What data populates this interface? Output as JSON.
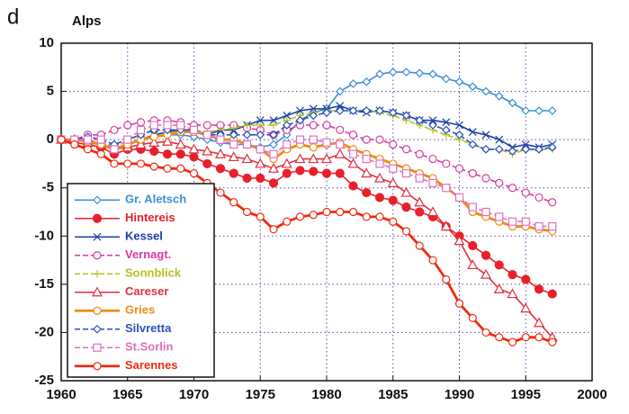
{
  "chart_data": {
    "type": "line",
    "panel": "d",
    "title": "Alps",
    "x": [
      1960,
      1961,
      1962,
      1963,
      1964,
      1965,
      1966,
      1967,
      1968,
      1969,
      1970,
      1971,
      1972,
      1973,
      1974,
      1975,
      1976,
      1977,
      1978,
      1979,
      1980,
      1981,
      1982,
      1983,
      1984,
      1985,
      1986,
      1987,
      1988,
      1989,
      1990,
      1991,
      1992,
      1993,
      1994,
      1995,
      1996,
      1997
    ],
    "xlim": [
      1960,
      2000
    ],
    "xticks": [
      1960,
      1965,
      1970,
      1975,
      1980,
      1985,
      1990,
      1995,
      2000
    ],
    "ylim": [
      -25,
      10
    ],
    "yticks": [
      -25,
      -20,
      -15,
      -10,
      -5,
      0,
      5,
      10
    ],
    "grid": true,
    "legend": "lower left",
    "series": [
      {
        "name": "Gr. Aletsch",
        "color": "#3a8fd8",
        "marker": "diamond-open",
        "dashed": false,
        "values": [
          0,
          0,
          -0.3,
          -0.5,
          -1,
          -0.5,
          0,
          0.3,
          0.5,
          0.5,
          0.3,
          0,
          -0.3,
          -0.5,
          -0.5,
          -0.8,
          -0.5,
          0.5,
          2,
          2.8,
          3.2,
          5,
          5.8,
          6,
          6.8,
          7,
          7,
          6.9,
          6.8,
          6.3,
          6,
          5.5,
          5,
          4.5,
          3.8,
          3,
          3,
          3
        ]
      },
      {
        "name": "Hintereis",
        "color": "#e8202a",
        "marker": "circle-filled",
        "dashed": false,
        "values": [
          0,
          -0.3,
          -0.5,
          -0.8,
          -1.5,
          -1,
          -1,
          -1.2,
          -1.5,
          -1.5,
          -1.8,
          -2.5,
          -3,
          -3.5,
          -4,
          -4,
          -4.5,
          -3.5,
          -3.2,
          -3.3,
          -3.5,
          -3.5,
          -4.8,
          -5.5,
          -6,
          -6.3,
          -7,
          -7.5,
          -8,
          -9,
          -10,
          -11,
          -12,
          -13,
          -14,
          -14.5,
          -15.5,
          -16
        ]
      },
      {
        "name": "Kessel",
        "color": "#1b3fa8",
        "marker": "cross",
        "dashed": false,
        "values": [
          0,
          0,
          0,
          -0.5,
          -1,
          -0.5,
          0,
          0.5,
          0.8,
          1,
          1,
          0.5,
          1,
          1,
          1.5,
          2,
          2,
          2.5,
          3,
          3.2,
          3.2,
          3.5,
          3,
          2.8,
          3,
          2.8,
          2.5,
          2,
          2,
          1.8,
          1.5,
          0.8,
          0.5,
          0,
          -0.8,
          -0.5,
          -0.8,
          -0.5
        ]
      },
      {
        "name": "Vernagt.",
        "color": "#d83a9e",
        "marker": "circle-open",
        "dashed": true,
        "values": [
          0,
          0,
          0.5,
          0.5,
          1,
          1.5,
          1.8,
          2,
          2,
          1.8,
          1.5,
          1.5,
          1.5,
          1.5,
          1.2,
          1,
          0.5,
          1,
          1.5,
          1.5,
          1.5,
          1,
          0.5,
          0,
          0,
          -0.5,
          -1,
          -1.5,
          -2,
          -2.5,
          -3,
          -3.5,
          -4,
          -4.5,
          -5,
          -5.5,
          -6,
          -6.5
        ]
      },
      {
        "name": "Sonnblick",
        "color": "#b8c020",
        "marker": "plus",
        "dashed": true,
        "values": [
          0,
          0,
          0,
          -0.5,
          -0.5,
          0,
          0.5,
          1,
          1,
          1,
          1,
          0.8,
          1,
          1.2,
          1.5,
          1.5,
          1.5,
          2,
          2.5,
          2.8,
          3,
          3,
          3,
          3,
          2.8,
          2.5,
          2,
          1.5,
          1,
          0.5,
          0,
          -0.5,
          -1,
          -1,
          -1.5,
          -1,
          -1,
          -1
        ]
      },
      {
        "name": "Careser",
        "color": "#e03040",
        "marker": "triangle-open",
        "dashed": false,
        "values": [
          0,
          0,
          -0.3,
          -0.5,
          -1,
          -0.8,
          -0.5,
          -0.3,
          -0.2,
          -0.5,
          -1,
          -1.2,
          -1.5,
          -1.8,
          -2,
          -2.5,
          -3,
          -2.5,
          -2,
          -2,
          -2,
          -1.5,
          -2.5,
          -3.5,
          -4,
          -4.5,
          -5.5,
          -6.5,
          -7.5,
          -9,
          -10.5,
          -13,
          -14,
          -15.5,
          -16,
          -17.5,
          -19,
          -20.5
        ]
      },
      {
        "name": "Gries",
        "color": "#f08a10",
        "marker": "circle-open",
        "dashed": false,
        "thick": true,
        "values": [
          0,
          0,
          -0.2,
          -0.5,
          -1,
          -0.5,
          0,
          0.3,
          0.5,
          0.8,
          0.8,
          0.5,
          0,
          0,
          -0.5,
          -1,
          -2,
          -1,
          -0.5,
          -0.8,
          -0.5,
          -0.3,
          -1,
          -1.5,
          -2,
          -2.5,
          -3,
          -3.5,
          -4,
          -5,
          -6,
          -7.5,
          -8,
          -8.5,
          -9,
          -9,
          -9.3,
          -9.5
        ]
      },
      {
        "name": "Silvretta",
        "color": "#2a50c0",
        "marker": "diamond-open",
        "dashed": true,
        "values": [
          0,
          0,
          0.3,
          0,
          -0.5,
          0,
          0.5,
          1,
          1,
          1,
          1,
          0.5,
          0.5,
          0.5,
          0.5,
          0.5,
          0.5,
          1.5,
          2,
          2.5,
          2.8,
          3,
          3,
          3,
          3,
          2.8,
          2.5,
          2,
          1.5,
          1,
          0.5,
          -0.5,
          -1,
          -1,
          -1.2,
          -1,
          -1,
          -0.8
        ]
      },
      {
        "name": "St.Sorlin",
        "color": "#e070c0",
        "marker": "square-open",
        "dashed": true,
        "values": [
          0,
          0,
          0,
          0,
          -1,
          0,
          1,
          1.5,
          1.5,
          1.5,
          1,
          0.5,
          0,
          -0.5,
          -0.5,
          -1,
          -1.5,
          -0.5,
          0,
          0,
          -0.3,
          -0.5,
          -1.5,
          -2,
          -2.5,
          -3,
          -3.5,
          -4,
          -4.5,
          -5,
          -6,
          -7,
          -7.5,
          -8,
          -8.5,
          -8.5,
          -9,
          -9
        ]
      },
      {
        "name": "Sarennes",
        "color": "#f02a10",
        "marker": "circle-open",
        "dashed": false,
        "thick": true,
        "values": [
          0,
          -0.5,
          -1,
          -1.5,
          -2.5,
          -2.5,
          -2.5,
          -2.8,
          -3,
          -3,
          -3.5,
          -4.5,
          -5.5,
          -6.5,
          -7.5,
          -8,
          -9.3,
          -8.5,
          -8,
          -7.8,
          -7.5,
          -7.5,
          -7.5,
          -8,
          -8,
          -8.5,
          -9.5,
          -11,
          -12.5,
          -14.5,
          -17,
          -18.5,
          -20,
          -20.5,
          -21,
          -20.5,
          -20.5,
          -21
        ]
      }
    ]
  }
}
